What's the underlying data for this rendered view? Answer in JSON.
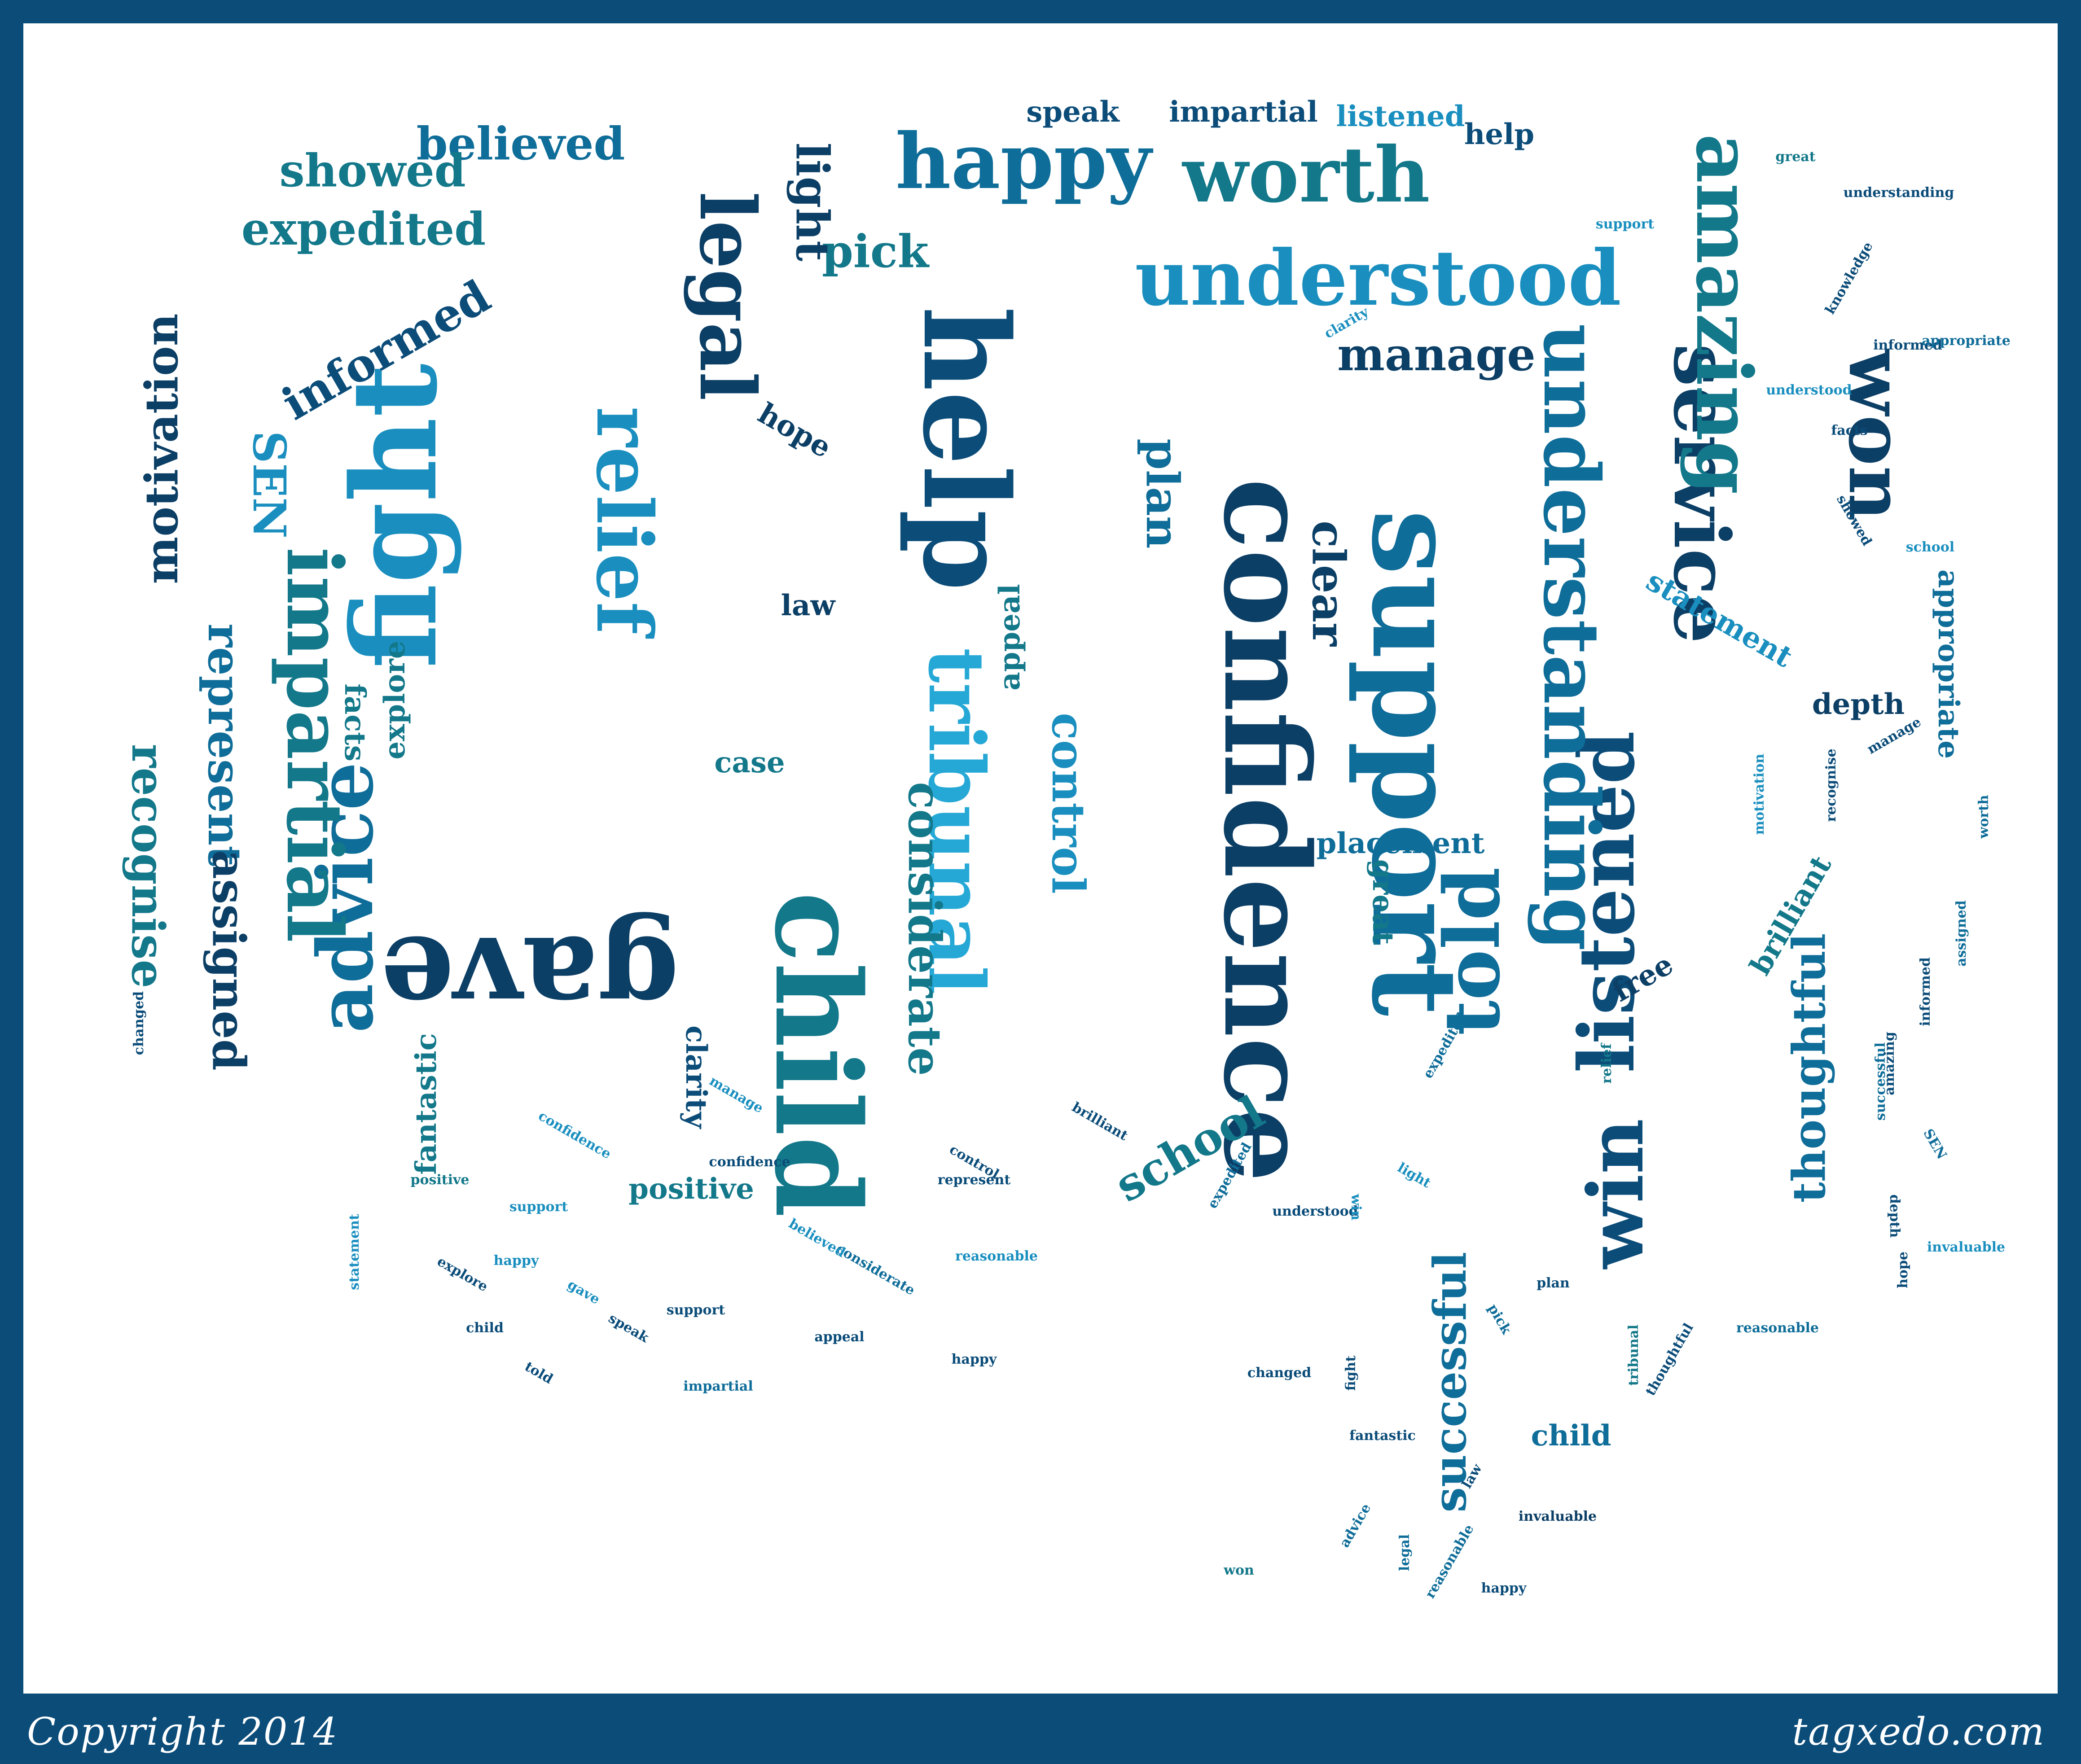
{
  "footer": {
    "copyright": "Copyright 2014",
    "site": "tagxedo.com"
  },
  "palette": {
    "frame": "#0b4c79",
    "background": "#ffffff",
    "word_colors": [
      "#0b4c79",
      "#0f6d99",
      "#1a8fbf",
      "#26a8d6",
      "#13788a",
      "#0c3f66"
    ]
  },
  "cloud": {
    "words": [
      {
        "text": "help",
        "rot": 90,
        "emph": 5,
        "color": 0
      },
      {
        "text": "confidence",
        "rot": 90,
        "emph": 5,
        "color": 5
      },
      {
        "text": "gave",
        "rot": 180,
        "emph": 5,
        "color": 5
      },
      {
        "text": "child",
        "rot": 90,
        "emph": 5,
        "color": 4
      },
      {
        "text": "support",
        "rot": 90,
        "emph": 5,
        "color": 1
      },
      {
        "text": "fight",
        "rot": -90,
        "emph": 5,
        "color": 2
      },
      {
        "text": "relief",
        "rot": 90,
        "emph": 4,
        "color": 2
      },
      {
        "text": "tribunal",
        "rot": 90,
        "emph": 4,
        "color": 3
      },
      {
        "text": "service",
        "rot": 90,
        "emph": 4,
        "color": 5
      },
      {
        "text": "listened",
        "rot": -90,
        "emph": 4,
        "color": 0
      },
      {
        "text": "understanding",
        "rot": 90,
        "emph": 4,
        "color": 1
      },
      {
        "text": "advice",
        "rot": -90,
        "emph": 4,
        "color": 1
      },
      {
        "text": "legal",
        "rot": 90,
        "emph": 4,
        "color": 5
      },
      {
        "text": "happy",
        "rot": 0,
        "emph": 4,
        "color": 1
      },
      {
        "text": "worth",
        "rot": 0,
        "emph": 4,
        "color": 4
      },
      {
        "text": "understood",
        "rot": 0,
        "emph": 4,
        "color": 2
      },
      {
        "text": "amazing",
        "rot": 90,
        "emph": 4,
        "color": 4
      },
      {
        "text": "won",
        "rot": 90,
        "emph": 4,
        "color": 5
      },
      {
        "text": "impartial",
        "rot": 90,
        "emph": 4,
        "color": 4
      },
      {
        "text": "win",
        "rot": -90,
        "emph": 4,
        "color": 0
      },
      {
        "text": "told",
        "rot": -90,
        "emph": 4,
        "color": 1
      },
      {
        "text": "successful",
        "rot": -90,
        "emph": 3,
        "color": 1
      },
      {
        "text": "informed",
        "rot": -30,
        "emph": 3,
        "color": 0
      },
      {
        "text": "school",
        "rot": -30,
        "emph": 3,
        "color": 4
      },
      {
        "text": "clear",
        "rot": 90,
        "emph": 3,
        "color": 5
      },
      {
        "text": "control",
        "rot": 90,
        "emph": 3,
        "color": 2
      },
      {
        "text": "considerate",
        "rot": 90,
        "emph": 3,
        "color": 4
      },
      {
        "text": "thoughtful",
        "rot": -90,
        "emph": 3,
        "color": 1
      },
      {
        "text": "represent",
        "rot": 90,
        "emph": 3,
        "color": 1
      },
      {
        "text": "recognise",
        "rot": 90,
        "emph": 3,
        "color": 4
      },
      {
        "text": "assigned",
        "rot": 90,
        "emph": 3,
        "color": 5
      },
      {
        "text": "manage",
        "rot": 0,
        "emph": 3,
        "color": 5
      },
      {
        "text": "believed",
        "rot": 0,
        "emph": 3,
        "color": 1
      },
      {
        "text": "showed",
        "rot": 0,
        "emph": 3,
        "color": 4
      },
      {
        "text": "expedited",
        "rot": 0,
        "emph": 3,
        "color": 4
      },
      {
        "text": "motivation",
        "rot": -90,
        "emph": 3,
        "color": 5
      },
      {
        "text": "pick",
        "rot": 0,
        "emph": 3,
        "color": 4
      },
      {
        "text": "light",
        "rot": 90,
        "emph": 3,
        "color": 5
      },
      {
        "text": "plan",
        "rot": 90,
        "emph": 3,
        "color": 1
      },
      {
        "text": "SEN",
        "rot": 90,
        "emph": 3,
        "color": 2
      },
      {
        "text": "statement",
        "rot": 30,
        "emph": 2,
        "color": 2
      },
      {
        "text": "appropriate",
        "rot": 90,
        "emph": 2,
        "color": 1
      },
      {
        "text": "depth",
        "rot": 0,
        "emph": 2,
        "color": 5
      },
      {
        "text": "great",
        "rot": 90,
        "emph": 2,
        "color": 4
      },
      {
        "text": "clarity",
        "rot": 90,
        "emph": 2,
        "color": 0
      },
      {
        "text": "fantastic",
        "rot": -90,
        "emph": 2,
        "color": 4
      },
      {
        "text": "positive",
        "rot": 0,
        "emph": 2,
        "color": 4
      },
      {
        "text": "case",
        "rot": 0,
        "emph": 2,
        "color": 4
      },
      {
        "text": "law",
        "rot": 0,
        "emph": 2,
        "color": 5
      },
      {
        "text": "appeal",
        "rot": -90,
        "emph": 2,
        "color": 4
      },
      {
        "text": "explore",
        "rot": -90,
        "emph": 2,
        "color": 4
      },
      {
        "text": "facts",
        "rot": 90,
        "emph": 2,
        "color": 4
      },
      {
        "text": "hope",
        "rot": 30,
        "emph": 2,
        "color": 5
      },
      {
        "text": "placement",
        "rot": 0,
        "emph": 2,
        "color": 1
      },
      {
        "text": "free",
        "rot": -30,
        "emph": 2,
        "color": 5
      },
      {
        "text": "brilliant",
        "rot": -60,
        "emph": 2,
        "color": 4
      },
      {
        "text": "speak",
        "rot": 0,
        "emph": 2,
        "color": 0
      },
      {
        "text": "impartial",
        "rot": 0,
        "emph": 2,
        "color": 0
      },
      {
        "text": "listened",
        "rot": 0,
        "emph": 2,
        "color": 2
      },
      {
        "text": "help",
        "rot": 0,
        "emph": 2,
        "color": 0
      },
      {
        "text": "child",
        "rot": 0,
        "emph": 2,
        "color": 1
      },
      {
        "text": "invaluable",
        "rot": 0,
        "emph": 1,
        "color": 5
      },
      {
        "text": "happy",
        "rot": 0,
        "emph": 1,
        "color": 0
      },
      {
        "text": "reasonable",
        "rot": -60,
        "emph": 1,
        "color": 1
      },
      {
        "text": "fantastic",
        "rot": 0,
        "emph": 1,
        "color": 0
      },
      {
        "text": "relief",
        "rot": -90,
        "emph": 1,
        "color": 4
      },
      {
        "text": "tribunal",
        "rot": -90,
        "emph": 1,
        "color": 4
      },
      {
        "text": "expedited",
        "rot": -60,
        "emph": 1,
        "color": 1
      },
      {
        "text": "understood",
        "rot": 0,
        "emph": 1,
        "color": 0
      },
      {
        "text": "represent",
        "rot": 0,
        "emph": 1,
        "color": 0
      },
      {
        "text": "support",
        "rot": 0,
        "emph": 1,
        "color": 2
      },
      {
        "text": "positive",
        "rot": 0,
        "emph": 1,
        "color": 4
      },
      {
        "text": "great",
        "rot": 0,
        "emph": 1,
        "color": 4
      },
      {
        "text": "understanding",
        "rot": 0,
        "emph": 1,
        "color": 0
      },
      {
        "text": "knowledge",
        "rot": -60,
        "emph": 1,
        "color": 0
      },
      {
        "text": "informed",
        "rot": 0,
        "emph": 1,
        "color": 0
      },
      {
        "text": "appropriate",
        "rot": 0,
        "emph": 1,
        "color": 1
      },
      {
        "text": "understood",
        "rot": 0,
        "emph": 1,
        "color": 2
      },
      {
        "text": "facts",
        "rot": 0,
        "emph": 1,
        "color": 0
      },
      {
        "text": "support",
        "rot": 0,
        "emph": 1,
        "color": 2
      },
      {
        "text": "clarity",
        "rot": -30,
        "emph": 1,
        "color": 2
      },
      {
        "text": "showed",
        "rot": 60,
        "emph": 1,
        "color": 0
      },
      {
        "text": "school",
        "rot": 0,
        "emph": 1,
        "color": 2
      },
      {
        "text": "manage",
        "rot": -30,
        "emph": 1,
        "color": 0
      },
      {
        "text": "recognise",
        "rot": -90,
        "emph": 1,
        "color": 0
      },
      {
        "text": "motivation",
        "rot": -90,
        "emph": 1,
        "color": 2
      },
      {
        "text": "expedited",
        "rot": -60,
        "emph": 1,
        "color": 1
      },
      {
        "text": "successful",
        "rot": -90,
        "emph": 1,
        "color": 1
      },
      {
        "text": "invaluable",
        "rot": 0,
        "emph": 1,
        "color": 2
      },
      {
        "text": "reasonable",
        "rot": 0,
        "emph": 1,
        "color": 1
      },
      {
        "text": "thoughtful",
        "rot": -60,
        "emph": 1,
        "color": 0
      },
      {
        "text": "law",
        "rot": -60,
        "emph": 1,
        "color": 0
      },
      {
        "text": "legal",
        "rot": -90,
        "emph": 1,
        "color": 1
      },
      {
        "text": "advice",
        "rot": -60,
        "emph": 1,
        "color": 1
      },
      {
        "text": "fight",
        "rot": -90,
        "emph": 1,
        "color": 0
      },
      {
        "text": "won",
        "rot": 0,
        "emph": 1,
        "color": 4
      },
      {
        "text": "worth",
        "rot": -90,
        "emph": 1,
        "color": 1
      },
      {
        "text": "assigned",
        "rot": -90,
        "emph": 1,
        "color": 1
      },
      {
        "text": "informed",
        "rot": -90,
        "emph": 1,
        "color": 0
      },
      {
        "text": "amazing",
        "rot": -90,
        "emph": 1,
        "color": 0
      },
      {
        "text": "SEN",
        "rot": 60,
        "emph": 1,
        "color": 1
      },
      {
        "text": "changed",
        "rot": -90,
        "emph": 1,
        "color": 0
      },
      {
        "text": "depth",
        "rot": 90,
        "emph": 1,
        "color": 0
      },
      {
        "text": "hope",
        "rot": -90,
        "emph": 1,
        "color": 0
      },
      {
        "text": "considerate",
        "rot": 30,
        "emph": 1,
        "color": 1
      },
      {
        "text": "brilliant",
        "rot": 30,
        "emph": 1,
        "color": 0
      },
      {
        "text": "control",
        "rot": 30,
        "emph": 1,
        "color": 0
      },
      {
        "text": "pick",
        "rot": 60,
        "emph": 1,
        "color": 1
      },
      {
        "text": "plan",
        "rot": 0,
        "emph": 1,
        "color": 0
      },
      {
        "text": "win",
        "rot": 90,
        "emph": 1,
        "color": 2
      },
      {
        "text": "light",
        "rot": 30,
        "emph": 1,
        "color": 2
      },
      {
        "text": "believed",
        "rot": 30,
        "emph": 1,
        "color": 2
      },
      {
        "text": "confidence",
        "rot": 30,
        "emph": 1,
        "color": 2
      },
      {
        "text": "explore",
        "rot": 30,
        "emph": 1,
        "color": 0
      },
      {
        "text": "gave",
        "rot": 30,
        "emph": 1,
        "color": 2
      },
      {
        "text": "told",
        "rot": 30,
        "emph": 1,
        "color": 0
      },
      {
        "text": "statement",
        "rot": -90,
        "emph": 1,
        "color": 2
      },
      {
        "text": "manage",
        "rot": 30,
        "emph": 1,
        "color": 2
      },
      {
        "text": "happy",
        "rot": 0,
        "emph": 1,
        "color": 2
      },
      {
        "text": "confidence",
        "rot": 0,
        "emph": 1,
        "color": 0
      },
      {
        "text": "appeal",
        "rot": 0,
        "emph": 1,
        "color": 0
      },
      {
        "text": "support",
        "rot": 0,
        "emph": 1,
        "color": 0
      },
      {
        "text": "speak",
        "rot": 30,
        "emph": 1,
        "color": 0
      },
      {
        "text": "child",
        "rot": 0,
        "emph": 1,
        "color": 0
      },
      {
        "text": "impartial",
        "rot": 0,
        "emph": 1,
        "color": 1
      },
      {
        "text": "reasonable",
        "rot": 0,
        "emph": 1,
        "color": 2
      },
      {
        "text": "happy",
        "rot": 0,
        "emph": 1,
        "color": 0
      },
      {
        "text": "changed",
        "rot": 0,
        "emph": 1,
        "color": 0
      }
    ]
  }
}
